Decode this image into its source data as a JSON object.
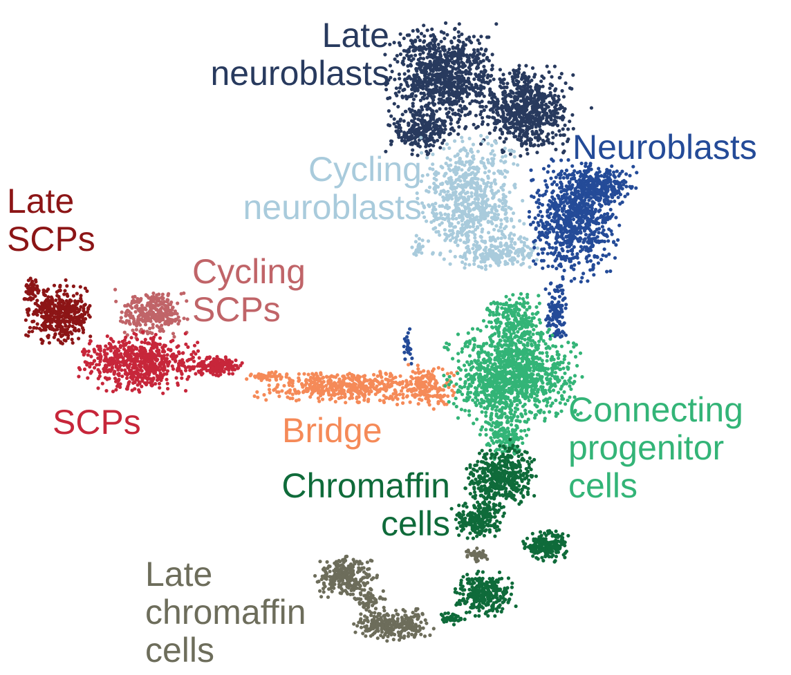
{
  "chart_data": {
    "type": "scatter",
    "title": "",
    "xlabel": "",
    "ylabel": "",
    "axes_visible": false,
    "grid": false,
    "legend": "none (cluster labels drawn next to clusters)",
    "clusters": [
      {
        "key": "late_neuroblasts",
        "label_lines": [
          "Late",
          "neuroblasts"
        ],
        "color": "#283a5e"
      },
      {
        "key": "neuroblasts",
        "label_lines": [
          "Neuroblasts"
        ],
        "color": "#244b98"
      },
      {
        "key": "cycling_neuroblasts",
        "label_lines": [
          "Cycling",
          "neuroblasts"
        ],
        "color": "#a9cbdc"
      },
      {
        "key": "late_scps",
        "label_lines": [
          "Late",
          "SCPs"
        ],
        "color": "#8c1516"
      },
      {
        "key": "cycling_scps",
        "label_lines": [
          "Cycling",
          "SCPs"
        ],
        "color": "#c06468"
      },
      {
        "key": "scps",
        "label_lines": [
          "SCPs"
        ],
        "color": "#c7263a"
      },
      {
        "key": "bridge",
        "label_lines": [
          "Bridge"
        ],
        "color": "#f58a58"
      },
      {
        "key": "connecting_progenitor_cells",
        "label_lines": [
          "Connecting",
          "progenitor",
          "cells"
        ],
        "color": "#33b477"
      },
      {
        "key": "chromaffin_cells",
        "label_lines": [
          "Chromaffin",
          "cells"
        ],
        "color": "#0f6b3a"
      },
      {
        "key": "late_chromaffin_cells",
        "label_lines": [
          "Late",
          "chromaffin",
          "cells"
        ],
        "color": "#6d6d5b"
      }
    ]
  }
}
